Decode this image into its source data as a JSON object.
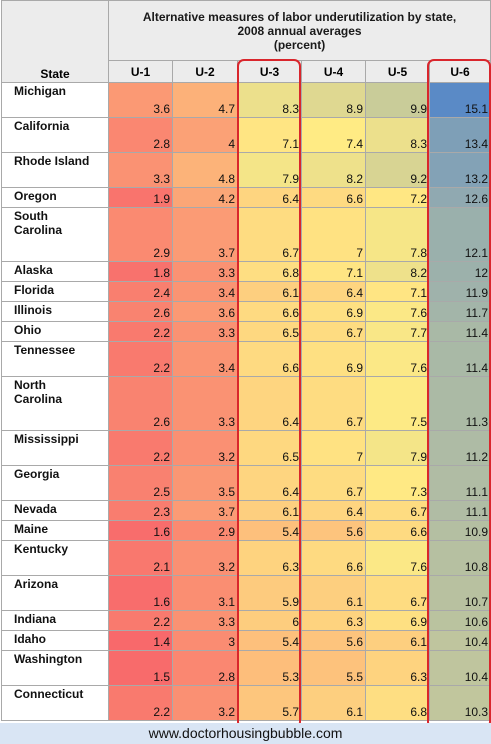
{
  "table": {
    "title_lines": [
      "Alternative measures of labor underutilization by state,",
      "2008 annual averages",
      "(percent)"
    ],
    "state_header": "State",
    "columns": [
      "U-1",
      "U-2",
      "U-3",
      "U-4",
      "U-5",
      "U-6"
    ],
    "rows": [
      {
        "state": [
          "Michigan"
        ],
        "values": [
          "3.6",
          "4.7",
          "8.3",
          "8.9",
          "9.9",
          "15.1"
        ],
        "tall": false
      },
      {
        "state": [
          "California"
        ],
        "values": [
          "2.8",
          "4",
          "7.1",
          "7.4",
          "8.3",
          "13.4"
        ],
        "tall": false
      },
      {
        "state": [
          "Rhode Island"
        ],
        "values": [
          "3.3",
          "4.8",
          "7.9",
          "8.2",
          "9.2",
          "13.2"
        ],
        "tall": false
      },
      {
        "state": [
          "Oregon"
        ],
        "values": [
          "1.9",
          "4.2",
          "6.4",
          "6.6",
          "7.2",
          "12.6"
        ],
        "tall": false
      },
      {
        "state": [
          "South",
          "Carolina"
        ],
        "values": [
          "2.9",
          "3.7",
          "6.7",
          "7",
          "7.8",
          "12.1"
        ],
        "tall": true
      },
      {
        "state": [
          "Alaska"
        ],
        "values": [
          "1.8",
          "3.3",
          "6.8",
          "7.1",
          "8.2",
          "12"
        ],
        "tall": false
      },
      {
        "state": [
          "Florida"
        ],
        "values": [
          "2.4",
          "3.4",
          "6.1",
          "6.4",
          "7.1",
          "11.9"
        ],
        "tall": false
      },
      {
        "state": [
          "Illinois"
        ],
        "values": [
          "2.6",
          "3.6",
          "6.6",
          "6.9",
          "7.6",
          "11.7"
        ],
        "tall": false
      },
      {
        "state": [
          "Ohio"
        ],
        "values": [
          "2.2",
          "3.3",
          "6.5",
          "6.7",
          "7.7",
          "11.4"
        ],
        "tall": false
      },
      {
        "state": [
          "Tennessee"
        ],
        "values": [
          "2.2",
          "3.4",
          "6.6",
          "6.9",
          "7.6",
          "11.4"
        ],
        "tall": false
      },
      {
        "state": [
          "North",
          "Carolina"
        ],
        "values": [
          "2.6",
          "3.3",
          "6.4",
          "6.7",
          "7.5",
          "11.3"
        ],
        "tall": true
      },
      {
        "state": [
          "Mississippi"
        ],
        "values": [
          "2.2",
          "3.2",
          "6.5",
          "7",
          "7.9",
          "11.2"
        ],
        "tall": false
      },
      {
        "state": [
          "Georgia"
        ],
        "values": [
          "2.5",
          "3.5",
          "6.4",
          "6.7",
          "7.3",
          "11.1"
        ],
        "tall": false
      },
      {
        "state": [
          "Nevada"
        ],
        "values": [
          "2.3",
          "3.7",
          "6.1",
          "6.4",
          "6.7",
          "11.1"
        ],
        "tall": false
      },
      {
        "state": [
          "Maine"
        ],
        "values": [
          "1.6",
          "2.9",
          "5.4",
          "5.6",
          "6.6",
          "10.9"
        ],
        "tall": false
      },
      {
        "state": [
          "Kentucky"
        ],
        "values": [
          "2.1",
          "3.2",
          "6.3",
          "6.6",
          "7.6",
          "10.8"
        ],
        "tall": false
      },
      {
        "state": [
          "Arizona"
        ],
        "values": [
          "1.6",
          "3.1",
          "5.9",
          "6.1",
          "6.7",
          "10.7"
        ],
        "tall": false
      },
      {
        "state": [
          "Indiana"
        ],
        "values": [
          "2.2",
          "3.3",
          "6",
          "6.3",
          "6.9",
          "10.6"
        ],
        "tall": false
      },
      {
        "state": [
          "Idaho"
        ],
        "values": [
          "1.4",
          "3",
          "5.4",
          "5.6",
          "6.1",
          "10.4"
        ],
        "tall": false
      },
      {
        "state": [
          "Washington"
        ],
        "values": [
          "1.5",
          "2.8",
          "5.3",
          "5.5",
          "6.3",
          "10.4"
        ],
        "tall": false
      },
      {
        "state": [
          "Connecticut"
        ],
        "values": [
          "2.2",
          "3.2",
          "5.7",
          "6.1",
          "6.8",
          "10.3"
        ],
        "tall": false
      }
    ]
  },
  "watermark": "www.doctorhousingbubble.com",
  "colors": {
    "header_bg": "#ececec",
    "grid": "#a9a9a9",
    "highlight": "#d9262c",
    "watermark_bg": "#d9e5f4",
    "scale_low": "#f8696b",
    "scale_mid": "#ffeb84",
    "scale_high": "#5a8ac6"
  }
}
